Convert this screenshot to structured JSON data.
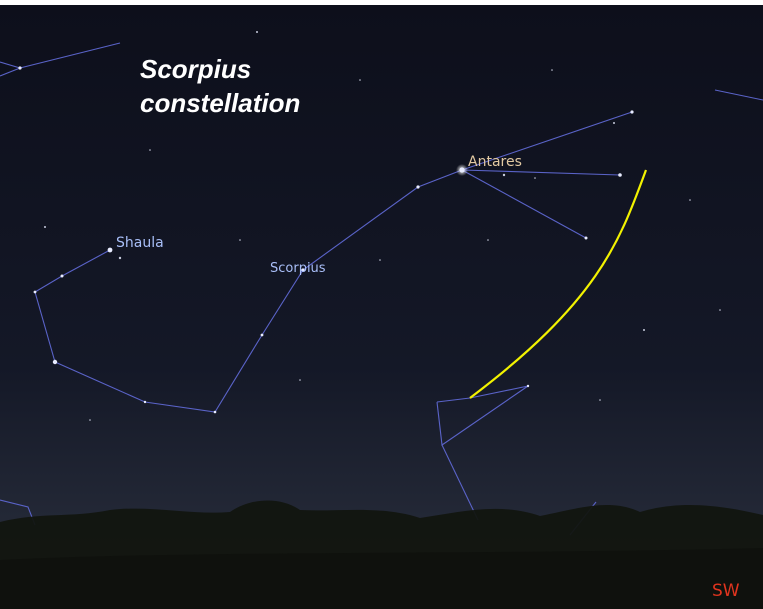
{
  "title": {
    "line1": "Scorpius",
    "line2": "constellation"
  },
  "labels": {
    "antares": "Antares",
    "shaula": "Shaula",
    "scorpius": "Scorpius"
  },
  "compass": "SW"
}
